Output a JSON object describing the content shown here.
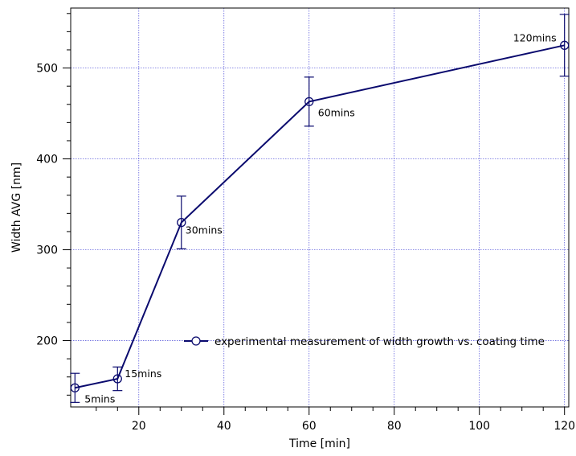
{
  "chart_data": {
    "type": "line",
    "xlabel": "Time [min]",
    "ylabel": "Width AVG [nm]",
    "xlim": [
      4,
      121
    ],
    "ylim": [
      127,
      566
    ],
    "x_ticks": [
      20,
      40,
      60,
      80,
      100,
      120
    ],
    "y_ticks": [
      200,
      300,
      400,
      500
    ],
    "grid": true,
    "legend_position": "inside-bottom-right",
    "series": [
      {
        "name": "experimental measurement of width growth vs. coating time",
        "color": "#0a0a6e",
        "marker": "open-circle",
        "points": [
          {
            "x": 5,
            "y": 148,
            "err": 16,
            "label": "5mins"
          },
          {
            "x": 15,
            "y": 158,
            "err": 13,
            "label": "15mins"
          },
          {
            "x": 30,
            "y": 330,
            "err": 29,
            "label": "30mins"
          },
          {
            "x": 60,
            "y": 463,
            "err": 27,
            "label": "60mins"
          },
          {
            "x": 120,
            "y": 525,
            "err": 34,
            "label": "120mins"
          }
        ]
      }
    ]
  }
}
